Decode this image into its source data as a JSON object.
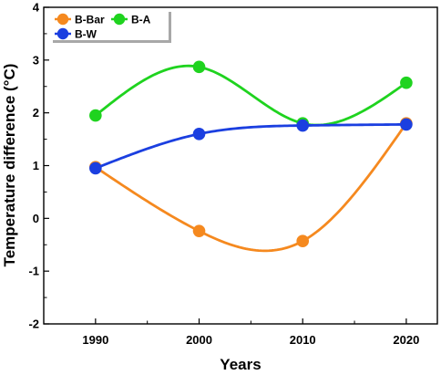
{
  "chart_data": {
    "type": "line",
    "x": [
      1990,
      2000,
      2010,
      2020
    ],
    "xlabel": "Years",
    "ylabel": "Temperature difference (°C)",
    "xlim": [
      1985,
      2023
    ],
    "ylim": [
      -2,
      4
    ],
    "xticks": [
      "1990",
      "2000",
      "2010",
      "2020"
    ],
    "yticks": [
      "-2",
      "-1",
      "0",
      "1",
      "2",
      "3",
      "4"
    ],
    "grid": false,
    "smooth": true,
    "legend_position": "top-left",
    "series": [
      {
        "name": "B-Bar",
        "color": "#f5891f",
        "values": [
          0.97,
          -0.24,
          -0.43,
          1.8
        ]
      },
      {
        "name": "B-A",
        "color": "#1fd31f",
        "values": [
          1.95,
          2.87,
          1.8,
          2.57
        ]
      },
      {
        "name": "B-W",
        "color": "#1b3fe0",
        "values": [
          0.95,
          1.6,
          1.76,
          1.78
        ]
      }
    ]
  }
}
